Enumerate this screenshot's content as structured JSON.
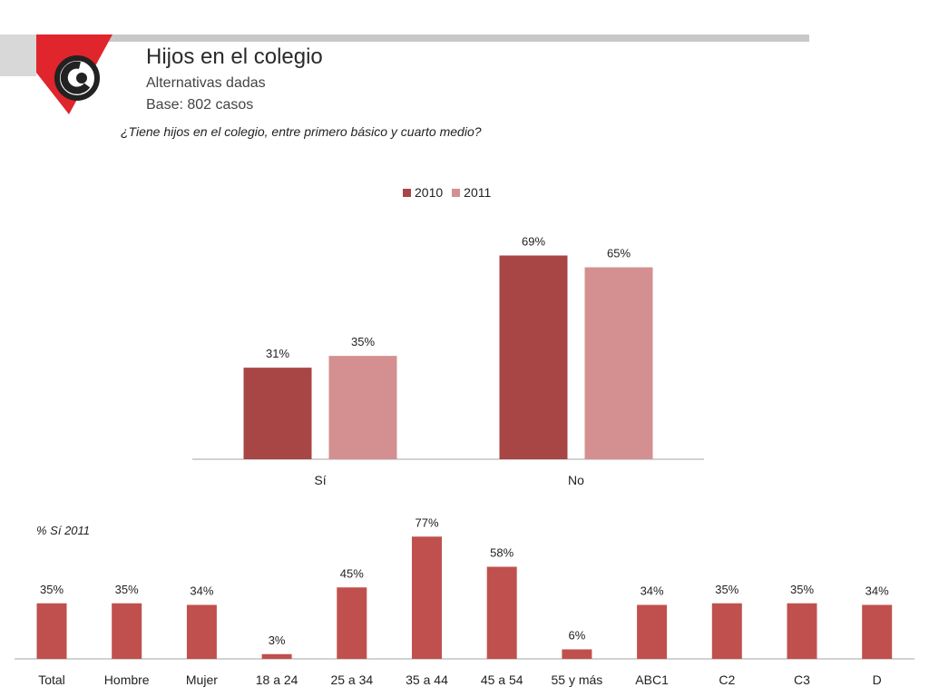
{
  "header": {
    "title": "Hijos en el colegio",
    "subtitle": "Alternativas dadas",
    "base": "Base: 802 casos",
    "question": "¿Tiene hijos en el colegio, entre primero básico y cuarto medio?"
  },
  "colors": {
    "series_2010": "#a84545",
    "series_2011": "#d49090",
    "bottom_bars": "#c0504d",
    "logo_red": "#e0252c",
    "bar_gray": "#c8c8c8"
  },
  "chart_data": [
    {
      "type": "bar",
      "categories": [
        "Sí",
        "No"
      ],
      "series": [
        {
          "name": "2010",
          "values": [
            31,
            69
          ],
          "labels": [
            "31%",
            "69%"
          ]
        },
        {
          "name": "2011",
          "values": [
            35,
            65
          ],
          "labels": [
            "35%",
            "65%"
          ]
        }
      ],
      "ylim": [
        0,
        75
      ],
      "legend_position": "top-center",
      "grid": false
    },
    {
      "type": "bar",
      "title": "% Sí 2011",
      "categories": [
        "Total",
        "Hombre",
        "Mujer",
        "18 a 24",
        "25 a 34",
        "35 a 44",
        "45 a 54",
        "55 y más",
        "ABC1",
        "C2",
        "C3",
        "D"
      ],
      "values": [
        35,
        35,
        34,
        3,
        45,
        77,
        58,
        6,
        34,
        35,
        35,
        34
      ],
      "labels": [
        "35%",
        "35%",
        "34%",
        "3%",
        "45%",
        "77%",
        "58%",
        "6%",
        "34%",
        "35%",
        "35%",
        "34%"
      ],
      "ylim": [
        0,
        80
      ],
      "grid": false
    }
  ]
}
